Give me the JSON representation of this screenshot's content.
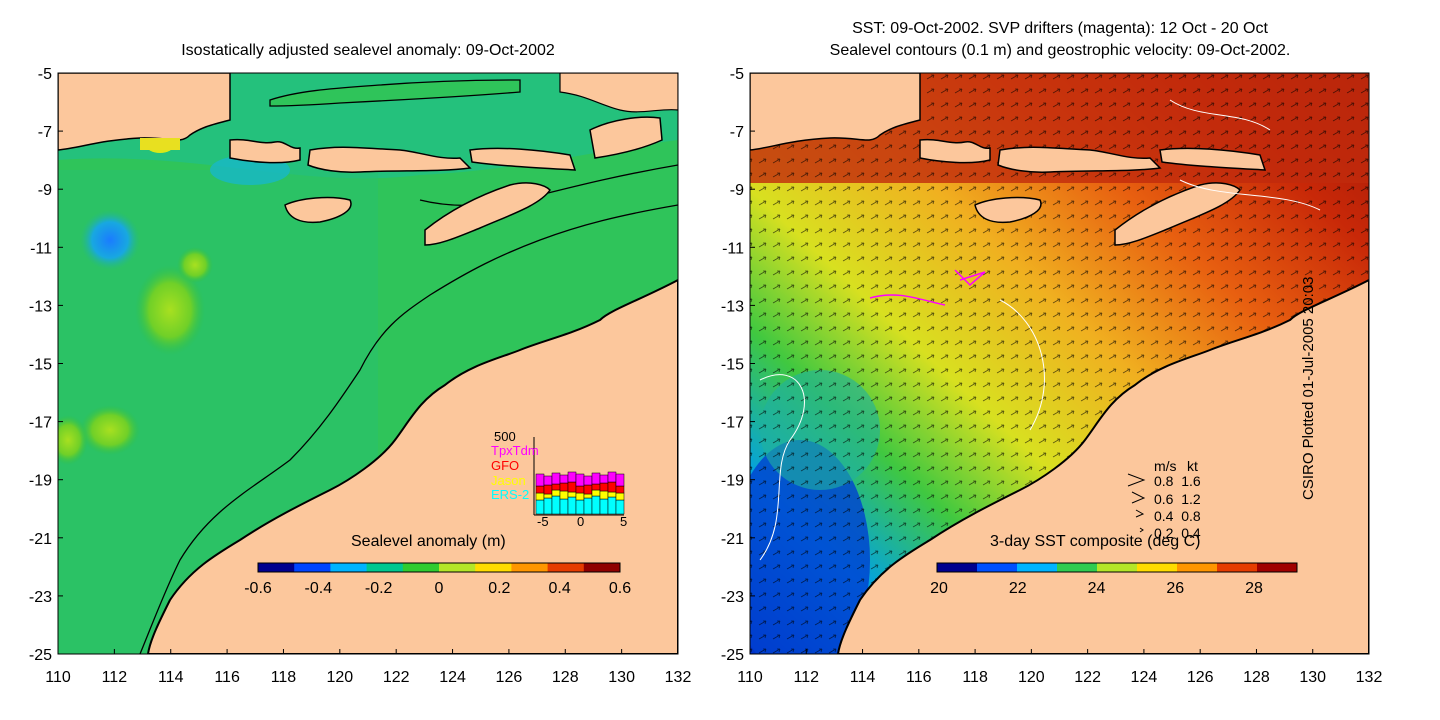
{
  "left_panel": {
    "title": "Isostatically adjusted sealevel anomaly: 09-Oct-2002",
    "colorbar": {
      "label": "Sealevel anomaly (m)",
      "ticks": [
        "-0.6",
        "-0.4",
        "-0.2",
        "0",
        "0.2",
        "0.4",
        "0.6"
      ],
      "colors": [
        "#00008f",
        "#0044ff",
        "#00b4ff",
        "#00c890",
        "#30cc30",
        "#b4e628",
        "#ffdc00",
        "#ff9600",
        "#e63c00",
        "#8f0000"
      ]
    },
    "inset": {
      "ymax_label": "500",
      "legend": [
        {
          "name": "TpxTdm",
          "color": "#ff00ff"
        },
        {
          "name": "GFO",
          "color": "#ff0000"
        },
        {
          "name": "Jason",
          "color": "#ffff00"
        },
        {
          "name": "ERS-2",
          "color": "#00ffff"
        }
      ],
      "xticks": [
        "-5",
        "0",
        "5"
      ]
    }
  },
  "right_panel": {
    "title_line1": "SST: 09-Oct-2002. SVP drifters (magenta): 12 Oct - 20 Oct",
    "title_line2": "Sealevel contours (0.1 m) and geostrophic velocity: 09-Oct-2002.",
    "colorbar": {
      "label": "3-day SST composite (deg C)",
      "ticks": [
        "20",
        "22",
        "24",
        "26",
        "28"
      ],
      "colors": [
        "#00008f",
        "#0050ff",
        "#00b4ff",
        "#30cc50",
        "#b4e628",
        "#ffdc00",
        "#ff9600",
        "#e63c00",
        "#a00000"
      ]
    },
    "velocity_legend": {
      "header_ms": "m/s",
      "header_kt": "kt",
      "rows": [
        {
          "ms": "0.8",
          "kt": "1.6"
        },
        {
          "ms": "0.6",
          "kt": "1.2"
        },
        {
          "ms": "0.4",
          "kt": "0.8"
        },
        {
          "ms": "0.2",
          "kt": "0.4"
        }
      ]
    }
  },
  "axes": {
    "x_ticks": [
      "110",
      "112",
      "114",
      "116",
      "118",
      "120",
      "122",
      "124",
      "126",
      "128",
      "130",
      "132"
    ],
    "y_ticks": [
      "-5",
      "-7",
      "-9",
      "-11",
      "-13",
      "-15",
      "-17",
      "-19",
      "-21",
      "-23",
      "-25"
    ]
  },
  "credit": "CSIRO Plotted 01-Jul-2005 20:03",
  "colors": {
    "land": "#fcc79c",
    "ocean_left": "#2fc45a",
    "ocean_right_warm": "#c0280a",
    "ocean_right_mid": "#f0a020",
    "ocean_right_cool": "#0050d8",
    "drifter": "#ff00ff"
  }
}
